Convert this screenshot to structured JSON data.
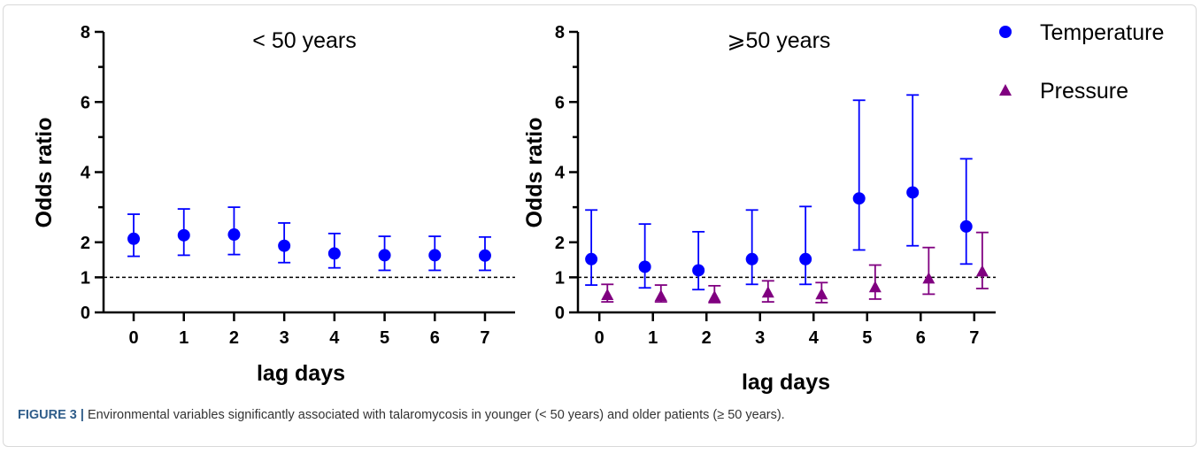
{
  "figure": {
    "caption_label": "FIGURE 3 |",
    "caption_text": "Environmental variables significantly associated with talaromycosis in younger (< 50 years) and older patients (≥ 50 years)."
  },
  "colors": {
    "temperature": "#0000ff",
    "pressure": "#800080",
    "reference": "#000000"
  },
  "legend": {
    "placement": "top-right",
    "items": [
      {
        "name": "Temperature",
        "marker": "circle"
      },
      {
        "name": "Pressure",
        "marker": "triangle"
      }
    ]
  },
  "chart_data": [
    {
      "type": "scatter",
      "title": "< 50 years",
      "xlabel": "lag days",
      "ylabel": "Odds ratio",
      "x": [
        0,
        1,
        2,
        3,
        4,
        5,
        6,
        7
      ],
      "xlim": [
        -0.6,
        7.6
      ],
      "ylim": [
        0,
        8
      ],
      "yticks": [
        0,
        1,
        2,
        4,
        6,
        8
      ],
      "yminor": [
        3,
        5,
        7
      ],
      "reference_line": 1,
      "grid": false,
      "series": [
        {
          "name": "Temperature",
          "values": [
            2.1,
            2.2,
            2.22,
            1.9,
            1.68,
            1.63,
            1.63,
            1.62
          ],
          "lower": [
            1.6,
            1.63,
            1.65,
            1.42,
            1.27,
            1.2,
            1.2,
            1.2
          ],
          "upper": [
            2.8,
            2.95,
            3.0,
            2.55,
            2.25,
            2.17,
            2.17,
            2.15
          ]
        }
      ]
    },
    {
      "type": "scatter",
      "title": "⩾50 years",
      "xlabel": "lag days",
      "ylabel": "Odds ratio",
      "x": [
        0,
        1,
        2,
        3,
        4,
        5,
        6,
        7
      ],
      "xlim": [
        -0.4,
        7.4
      ],
      "ylim": [
        0,
        8
      ],
      "yticks": [
        0,
        1,
        2,
        4,
        6,
        8
      ],
      "yminor": [
        3,
        5,
        7
      ],
      "reference_line": 1,
      "grid": false,
      "series": [
        {
          "name": "Temperature",
          "values": [
            1.52,
            1.3,
            1.2,
            1.52,
            1.52,
            3.25,
            3.42,
            2.45
          ],
          "lower": [
            0.78,
            0.7,
            0.65,
            0.8,
            0.8,
            1.78,
            1.9,
            1.38
          ],
          "upper": [
            2.92,
            2.52,
            2.3,
            2.92,
            3.02,
            6.05,
            6.2,
            4.38
          ]
        },
        {
          "name": "Pressure",
          "values": [
            0.48,
            0.45,
            0.43,
            0.55,
            0.5,
            0.7,
            0.95,
            1.15
          ],
          "lower": [
            0.3,
            0.3,
            0.28,
            0.3,
            0.28,
            0.38,
            0.52,
            0.68
          ],
          "upper": [
            0.8,
            0.78,
            0.76,
            0.9,
            0.85,
            1.35,
            1.85,
            2.28
          ]
        }
      ]
    }
  ]
}
